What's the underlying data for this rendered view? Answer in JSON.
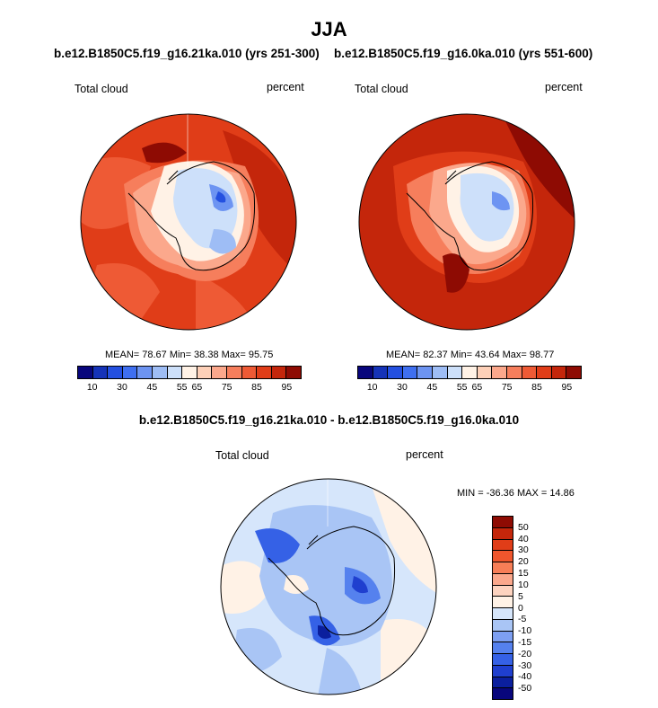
{
  "title": "JJA",
  "panels": [
    {
      "case": "b.e12.B1850C5.f19_g16.21ka.010 (yrs 251-300)",
      "variable": "Total cloud",
      "units": "percent",
      "stats": "MEAN= 78.67  Min= 38.38  Max= 95.75"
    },
    {
      "case": "b.e12.B1850C5.f19_g16.0ka.010 (yrs 551-600)",
      "variable": "Total cloud",
      "units": "percent",
      "stats": "MEAN= 82.37  Min= 43.64  Max= 98.77"
    }
  ],
  "difference": {
    "title": "b.e12.B1850C5.f19_g16.21ka.010 - b.e12.B1850C5.f19_g16.0ka.010",
    "variable": "Total cloud",
    "units": "percent",
    "stats": "MIN = -36.36 MAX =  14.86"
  },
  "colorbar_abs": {
    "colors": [
      "#08067c",
      "#1533b8",
      "#2450e0",
      "#3f6ff0",
      "#6d94f2",
      "#9ebdf5",
      "#cde0fa",
      "#fff2e6",
      "#fdd0b8",
      "#fba88c",
      "#f67e5c",
      "#ee5a35",
      "#e03d18",
      "#c4260b",
      "#8e0b03"
    ],
    "labels": [
      "10",
      "30",
      "45",
      "55",
      "65",
      "75",
      "85",
      "95"
    ]
  },
  "colorbar_diff": {
    "colors": [
      "#8e0b03",
      "#c4260b",
      "#e03d18",
      "#f0562d",
      "#f77e57",
      "#fba88c",
      "#fdd3bf",
      "#fff2e6",
      "#d6e6fb",
      "#a9c5f5",
      "#7d9ff2",
      "#5581ee",
      "#3561e6",
      "#1f3fcf",
      "#0b1f9e",
      "#08067c"
    ],
    "labels": [
      "50",
      "40",
      "30",
      "20",
      "15",
      "10",
      "5",
      "0",
      "-5",
      "-10",
      "-15",
      "-20",
      "-30",
      "-40",
      "-50"
    ]
  }
}
